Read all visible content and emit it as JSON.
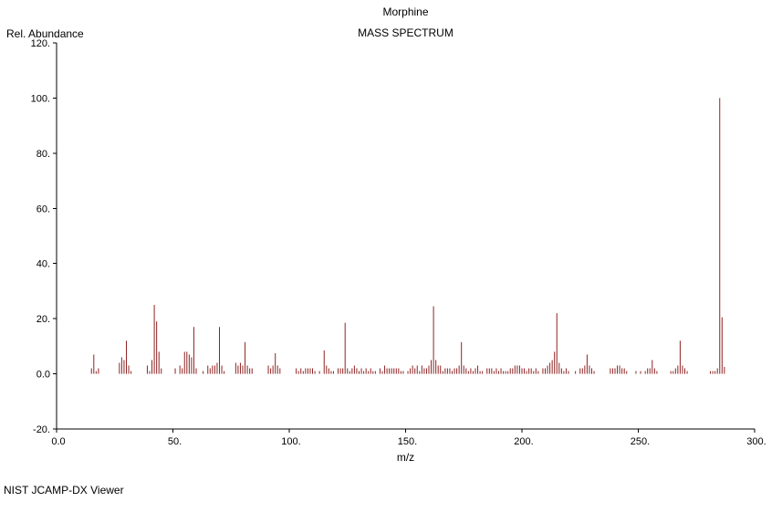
{
  "header": {
    "compound": "Morphine",
    "spectrum_type": "MASS SPECTRUM"
  },
  "footer": {
    "app_name": "NIST JCAMP-DX Viewer"
  },
  "chart_data": {
    "type": "bar",
    "title": "Morphine",
    "subtitle": "MASS SPECTRUM",
    "xlabel": "m/z",
    "ylabel": "Rel. Abundance",
    "xlim": [
      0,
      300
    ],
    "ylim": [
      -20,
      120
    ],
    "x_ticks": [
      0,
      50,
      100,
      150,
      200,
      250,
      300
    ],
    "x_tick_labels": [
      "0.0",
      "50.",
      "100.",
      "150.",
      "200.",
      "250.",
      "300."
    ],
    "y_ticks": [
      -20,
      0,
      20,
      40,
      60,
      80,
      100,
      120
    ],
    "y_tick_labels": [
      "-20.",
      "0.0",
      "20.",
      "40.",
      "60.",
      "80.",
      "100.",
      "120."
    ],
    "grid": false,
    "legend": null,
    "colors": {
      "peak": "#8e2323",
      "axis": "#000000",
      "text": "#000000",
      "background": "#ffffff"
    },
    "base_peak": {
      "mz": 285,
      "intensity": 100
    },
    "peaks": [
      [
        15,
        2
      ],
      [
        16,
        7
      ],
      [
        17,
        1
      ],
      [
        18,
        2
      ],
      [
        27,
        4
      ],
      [
        28,
        6
      ],
      [
        29,
        5
      ],
      [
        30,
        12
      ],
      [
        31,
        3
      ],
      [
        32,
        1
      ],
      [
        39,
        3
      ],
      [
        40,
        1
      ],
      [
        41,
        5
      ],
      [
        42,
        25
      ],
      [
        43,
        19
      ],
      [
        44,
        8
      ],
      [
        45,
        2
      ],
      [
        51,
        2
      ],
      [
        53,
        3
      ],
      [
        54,
        2
      ],
      [
        55,
        8
      ],
      [
        56,
        8
      ],
      [
        57,
        7
      ],
      [
        58,
        6
      ],
      [
        59,
        17
      ],
      [
        60,
        2
      ],
      [
        63,
        1
      ],
      [
        65,
        3
      ],
      [
        66,
        2
      ],
      [
        67,
        3
      ],
      [
        68,
        3
      ],
      [
        69,
        4
      ],
      [
        70,
        17
      ],
      [
        71,
        3
      ],
      [
        72,
        1
      ],
      [
        77,
        4
      ],
      [
        78,
        3
      ],
      [
        79,
        4
      ],
      [
        80,
        3
      ],
      [
        81,
        11.5
      ],
      [
        82,
        3
      ],
      [
        83,
        2
      ],
      [
        84,
        2
      ],
      [
        91,
        3
      ],
      [
        92,
        2
      ],
      [
        93,
        3
      ],
      [
        94,
        7.5
      ],
      [
        95,
        3
      ],
      [
        96,
        2
      ],
      [
        103,
        2
      ],
      [
        104,
        1
      ],
      [
        105,
        2
      ],
      [
        106,
        1
      ],
      [
        107,
        2
      ],
      [
        108,
        2
      ],
      [
        109,
        2
      ],
      [
        110,
        2
      ],
      [
        111,
        1
      ],
      [
        113,
        1
      ],
      [
        115,
        8.5
      ],
      [
        116,
        3
      ],
      [
        117,
        2
      ],
      [
        118,
        1
      ],
      [
        119,
        1
      ],
      [
        121,
        2
      ],
      [
        122,
        2
      ],
      [
        123,
        2
      ],
      [
        124,
        18.5
      ],
      [
        125,
        2
      ],
      [
        126,
        1
      ],
      [
        127,
        2
      ],
      [
        128,
        3
      ],
      [
        129,
        2
      ],
      [
        130,
        1
      ],
      [
        131,
        2
      ],
      [
        132,
        1
      ],
      [
        133,
        2
      ],
      [
        134,
        1
      ],
      [
        135,
        2
      ],
      [
        136,
        1
      ],
      [
        137,
        1
      ],
      [
        139,
        2
      ],
      [
        140,
        1
      ],
      [
        141,
        3
      ],
      [
        142,
        2
      ],
      [
        143,
        2
      ],
      [
        144,
        2
      ],
      [
        145,
        2
      ],
      [
        146,
        2
      ],
      [
        147,
        2
      ],
      [
        148,
        1
      ],
      [
        149,
        1
      ],
      [
        151,
        1
      ],
      [
        152,
        2
      ],
      [
        153,
        3
      ],
      [
        154,
        2
      ],
      [
        155,
        3
      ],
      [
        156,
        1
      ],
      [
        157,
        3
      ],
      [
        158,
        2
      ],
      [
        159,
        2
      ],
      [
        160,
        3
      ],
      [
        161,
        5
      ],
      [
        162,
        24.5
      ],
      [
        163,
        5
      ],
      [
        164,
        3
      ],
      [
        165,
        3
      ],
      [
        166,
        1
      ],
      [
        167,
        2
      ],
      [
        168,
        2
      ],
      [
        169,
        2
      ],
      [
        170,
        1
      ],
      [
        171,
        2
      ],
      [
        172,
        2
      ],
      [
        173,
        3
      ],
      [
        174,
        11.5
      ],
      [
        175,
        3
      ],
      [
        176,
        2
      ],
      [
        177,
        1
      ],
      [
        178,
        2
      ],
      [
        179,
        1
      ],
      [
        180,
        2
      ],
      [
        181,
        3
      ],
      [
        182,
        1
      ],
      [
        183,
        1
      ],
      [
        185,
        2
      ],
      [
        186,
        2
      ],
      [
        187,
        2
      ],
      [
        188,
        1
      ],
      [
        189,
        2
      ],
      [
        190,
        1
      ],
      [
        191,
        2
      ],
      [
        192,
        1
      ],
      [
        193,
        1
      ],
      [
        194,
        1
      ],
      [
        195,
        2
      ],
      [
        196,
        2
      ],
      [
        197,
        3
      ],
      [
        198,
        3
      ],
      [
        199,
        3
      ],
      [
        200,
        2
      ],
      [
        201,
        2
      ],
      [
        202,
        1
      ],
      [
        203,
        2
      ],
      [
        204,
        2
      ],
      [
        205,
        1
      ],
      [
        206,
        2
      ],
      [
        207,
        1
      ],
      [
        209,
        2
      ],
      [
        210,
        2
      ],
      [
        211,
        3
      ],
      [
        212,
        4
      ],
      [
        213,
        5
      ],
      [
        214,
        8
      ],
      [
        215,
        22
      ],
      [
        216,
        4
      ],
      [
        217,
        2
      ],
      [
        218,
        1
      ],
      [
        219,
        2
      ],
      [
        220,
        1
      ],
      [
        223,
        1
      ],
      [
        225,
        2
      ],
      [
        226,
        2
      ],
      [
        227,
        3
      ],
      [
        228,
        7
      ],
      [
        229,
        3
      ],
      [
        230,
        2
      ],
      [
        231,
        1
      ],
      [
        238,
        2
      ],
      [
        239,
        2
      ],
      [
        240,
        2
      ],
      [
        241,
        3
      ],
      [
        242,
        3
      ],
      [
        243,
        2
      ],
      [
        244,
        2
      ],
      [
        245,
        1
      ],
      [
        249,
        1
      ],
      [
        251,
        1
      ],
      [
        253,
        1
      ],
      [
        254,
        2
      ],
      [
        255,
        2
      ],
      [
        256,
        5
      ],
      [
        257,
        2
      ],
      [
        258,
        1
      ],
      [
        264,
        1
      ],
      [
        265,
        1
      ],
      [
        266,
        2
      ],
      [
        267,
        3
      ],
      [
        268,
        12
      ],
      [
        269,
        3
      ],
      [
        270,
        2
      ],
      [
        271,
        1
      ],
      [
        281,
        1
      ],
      [
        282,
        1
      ],
      [
        283,
        1
      ],
      [
        284,
        2
      ],
      [
        285,
        100
      ],
      [
        286,
        20.5
      ],
      [
        287,
        2.5
      ]
    ]
  }
}
